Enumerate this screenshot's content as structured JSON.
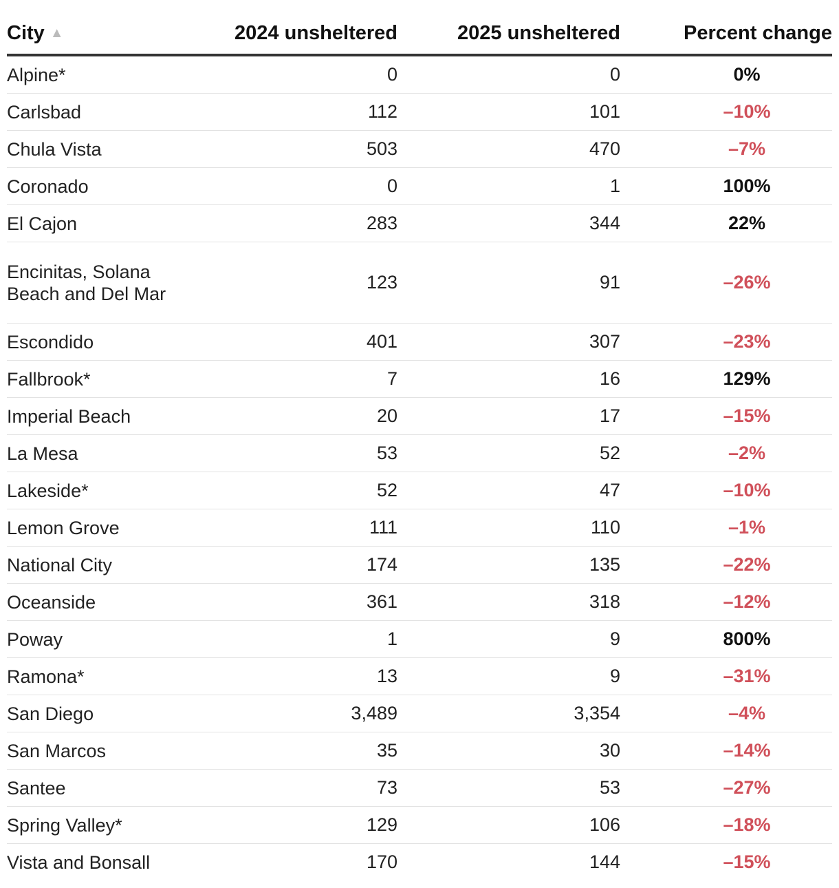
{
  "chart_data": {
    "type": "table",
    "columns": [
      "City",
      "2024 unsheltered",
      "2025 unsheltered",
      "Percent change"
    ],
    "sort": {
      "column": "City",
      "direction": "ascending",
      "indicator": "▲"
    },
    "rows": [
      {
        "city": "Alpine*",
        "y2024": "0",
        "y2025": "0",
        "pct": "0%",
        "direction": "pos"
      },
      {
        "city": "Carlsbad",
        "y2024": "112",
        "y2025": "101",
        "pct": "–10%",
        "direction": "neg"
      },
      {
        "city": "Chula Vista",
        "y2024": "503",
        "y2025": "470",
        "pct": "–7%",
        "direction": "neg"
      },
      {
        "city": "Coronado",
        "y2024": "0",
        "y2025": "1",
        "pct": "100%",
        "direction": "pos"
      },
      {
        "city": "El Cajon",
        "y2024": "283",
        "y2025": "344",
        "pct": "22%",
        "direction": "pos"
      },
      {
        "city": "Encinitas, Solana Beach and Del Mar",
        "y2024": "123",
        "y2025": "91",
        "pct": "–26%",
        "direction": "neg"
      },
      {
        "city": "Escondido",
        "y2024": "401",
        "y2025": "307",
        "pct": "–23%",
        "direction": "neg"
      },
      {
        "city": "Fallbrook*",
        "y2024": "7",
        "y2025": "16",
        "pct": "129%",
        "direction": "pos"
      },
      {
        "city": "Imperial Beach",
        "y2024": "20",
        "y2025": "17",
        "pct": "–15%",
        "direction": "neg"
      },
      {
        "city": "La Mesa",
        "y2024": "53",
        "y2025": "52",
        "pct": "–2%",
        "direction": "neg"
      },
      {
        "city": "Lakeside*",
        "y2024": "52",
        "y2025": "47",
        "pct": "–10%",
        "direction": "neg"
      },
      {
        "city": "Lemon Grove",
        "y2024": "111",
        "y2025": "110",
        "pct": "–1%",
        "direction": "neg"
      },
      {
        "city": "National City",
        "y2024": "174",
        "y2025": "135",
        "pct": "–22%",
        "direction": "neg"
      },
      {
        "city": "Oceanside",
        "y2024": "361",
        "y2025": "318",
        "pct": "–12%",
        "direction": "neg"
      },
      {
        "city": "Poway",
        "y2024": "1",
        "y2025": "9",
        "pct": "800%",
        "direction": "pos"
      },
      {
        "city": "Ramona*",
        "y2024": "13",
        "y2025": "9",
        "pct": "–31%",
        "direction": "neg"
      },
      {
        "city": "San Diego",
        "y2024": "3,489",
        "y2025": "3,354",
        "pct": "–4%",
        "direction": "neg"
      },
      {
        "city": "San Marcos",
        "y2024": "35",
        "y2025": "30",
        "pct": "–14%",
        "direction": "neg"
      },
      {
        "city": "Santee",
        "y2024": "73",
        "y2025": "53",
        "pct": "–27%",
        "direction": "neg"
      },
      {
        "city": "Spring Valley*",
        "y2024": "129",
        "y2025": "106",
        "pct": "–18%",
        "direction": "neg"
      },
      {
        "city": "Vista and Bonsall",
        "y2024": "170",
        "y2025": "144",
        "pct": "–15%",
        "direction": "neg"
      }
    ],
    "colors": {
      "negative": "#d0505a",
      "positive": "#111111",
      "header_rule": "#333333",
      "row_rule": "#e2e2e2"
    }
  }
}
